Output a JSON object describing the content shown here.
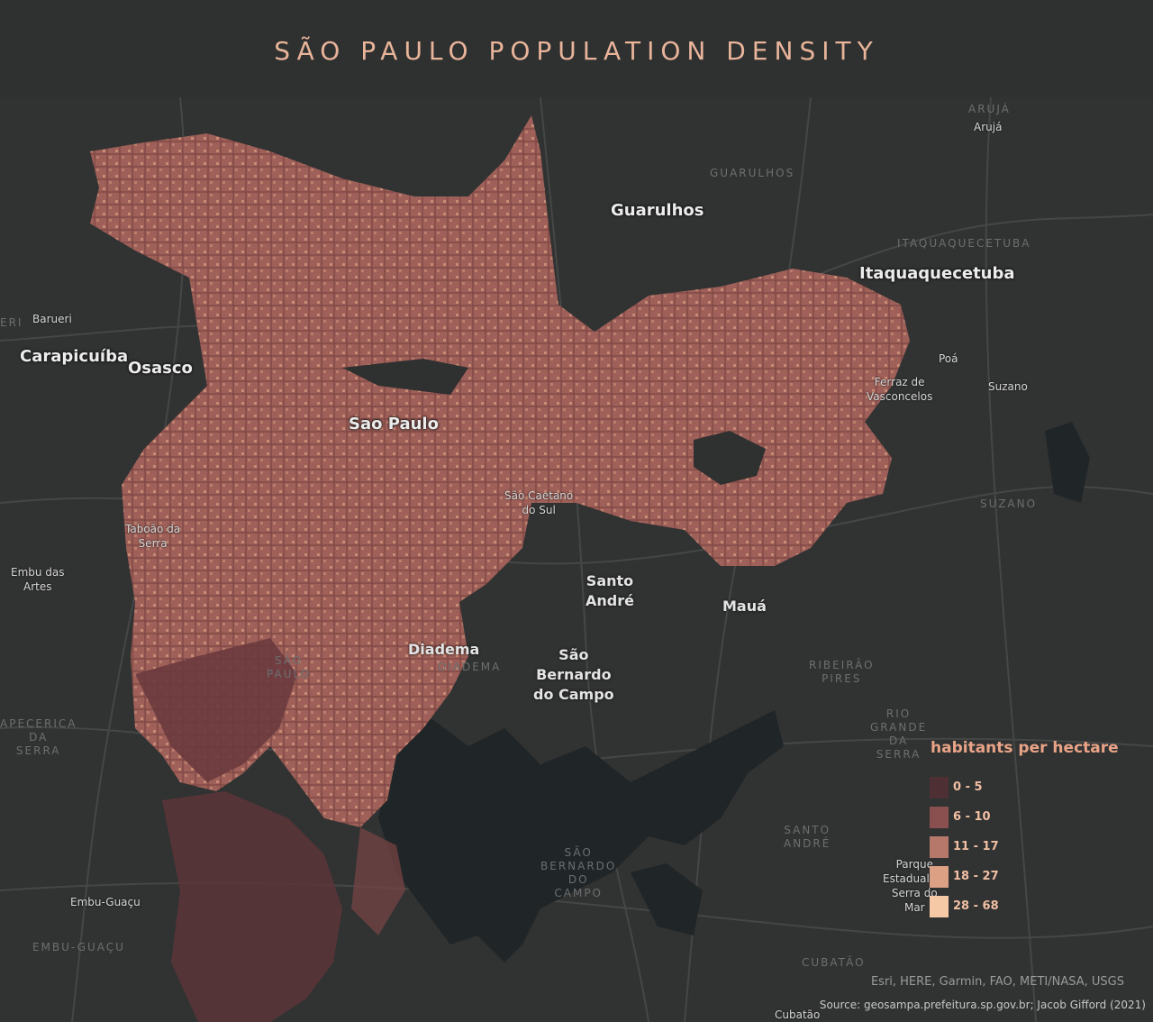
{
  "title": "SÃO PAULO POPULATION DENSITY",
  "cities_major": {
    "guarulhos": "Guarulhos",
    "itaquaquecetuba": "Itaquaquecetuba",
    "carapicuiba": "Carapicuíba",
    "osasco": "Osasco",
    "sao_paulo": "Sao Paulo",
    "santo_andre_1": "Santo",
    "santo_andre_2": "André",
    "maua": "Mauá",
    "diadema": "Diadema",
    "sbc_1": "São",
    "sbc_2": "Bernardo",
    "sbc_3": "do Campo"
  },
  "cities_minor": {
    "aruja": "Arujá",
    "barueri": "Barueri",
    "poa": "Poá",
    "suzano": "Suzano",
    "ferraz_1": "Ferraz de",
    "ferraz_2": "Vasconcelos",
    "sao_caetano_1": "São Caetano",
    "sao_caetano_2": "do Sul",
    "taboao_1": "Taboão da",
    "taboao_2": "Serra",
    "embu_1": "Embu das",
    "embu_2": "Artes",
    "embu_guacu": "Embu-Guaçu",
    "parque_1": "Parque",
    "parque_2": "Estadual da",
    "parque_3": "Serra do",
    "parque_4": "Mar",
    "cubatao": "Cubatão"
  },
  "admin_areas": {
    "aruja": "ARUJÁ",
    "guarulhos": "GUARULHOS",
    "itaquaquecetuba": "ITAQUAQUECETUBA",
    "suzano": "SUZANO",
    "sao_paulo_1": "SÃO",
    "sao_paulo_2": "PAULO",
    "diadema": "DIADEMA",
    "ribeirao_1": "RIBEIRÃO",
    "ribeirao_2": "PIRES",
    "rio_grande_1": "RIO",
    "rio_grande_2": "GRANDE",
    "rio_grande_3": "DA",
    "rio_grande_4": "SERRA",
    "santo_andre_1": "SANTO",
    "santo_andre_2": "ANDRÉ",
    "sbc_1": "SÃO",
    "sbc_2": "BERNARDO",
    "sbc_3": "DO",
    "sbc_4": "CAMPO",
    "embu_guacu": "EMBU-GUAÇU",
    "cubatao": "CUBATÃO",
    "itapecerica_1": "APECERICA",
    "itapecerica_2": "DA",
    "itapecerica_3": "SERRA",
    "barueri_fragment": "ERI"
  },
  "legend": {
    "title": "habitants per hectare",
    "classes": [
      {
        "label": "0 - 5",
        "color": "#4e3034"
      },
      {
        "label": "6 - 10",
        "color": "#8a5050"
      },
      {
        "label": "11 - 17",
        "color": "#b5786a"
      },
      {
        "label": "18 - 27",
        "color": "#dca085"
      },
      {
        "label": "28 - 68",
        "color": "#f6c9a6"
      }
    ]
  },
  "attribution": "Esri, HERE, Garmin, FAO, METI/NASA, USGS",
  "source": "Source:  geosampa.prefeitura.sp.gov.br; Jacob Gifford (2021)"
}
